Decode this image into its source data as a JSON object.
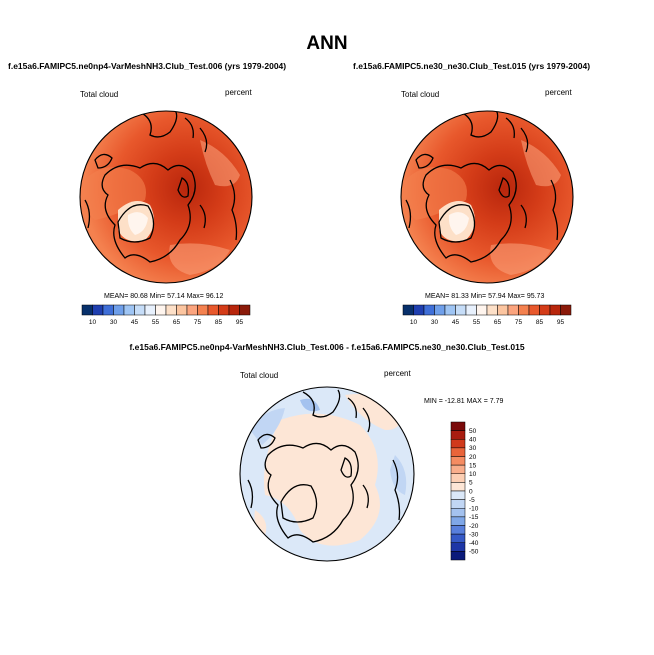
{
  "page": {
    "title": "ANN"
  },
  "chart_data": [
    {
      "type": "heatmap",
      "projection": "north-polar-stereographic",
      "title": "f.e15a6.FAMIPC5.ne0np4-VarMeshNH3.Club_Test.006 (yrs 1979-2004)",
      "variable": "Total cloud",
      "units": "percent",
      "stats": {
        "mean_label": "MEAN=",
        "mean": "80.68",
        "min_label": "Min=",
        "min": "57.14",
        "max_label": "Max=",
        "max": "96.12"
      },
      "colorbar_levels": [
        "10",
        "30",
        "45",
        "55",
        "65",
        "75",
        "85",
        "95"
      ],
      "colorbar_colors": [
        "#08306b",
        "#1f3fb0",
        "#3f6fd8",
        "#6f9fea",
        "#9fc5f4",
        "#c6ddf8",
        "#e8f1fd",
        "#fff5ee",
        "#fde0c8",
        "#fcc5a0",
        "#fba47e",
        "#f4814f",
        "#e8582c",
        "#d43c18",
        "#b8260c",
        "#8b1a0a"
      ],
      "colorbar_orientation": "horizontal"
    },
    {
      "type": "heatmap",
      "projection": "north-polar-stereographic",
      "title": "f.e15a6.FAMIPC5.ne30_ne30.Club_Test.015 (yrs 1979-2004)",
      "variable": "Total cloud",
      "units": "percent",
      "stats": {
        "mean_label": "MEAN=",
        "mean": "81.33",
        "min_label": "Min=",
        "min": "57.94",
        "max_label": "Max=",
        "max": "95.73"
      },
      "colorbar_levels": [
        "10",
        "30",
        "45",
        "55",
        "65",
        "75",
        "85",
        "95"
      ],
      "colorbar_colors": [
        "#08306b",
        "#1f3fb0",
        "#3f6fd8",
        "#6f9fea",
        "#9fc5f4",
        "#c6ddf8",
        "#e8f1fd",
        "#fff5ee",
        "#fde0c8",
        "#fcc5a0",
        "#fba47e",
        "#f4814f",
        "#e8582c",
        "#d43c18",
        "#b8260c",
        "#8b1a0a"
      ],
      "colorbar_orientation": "horizontal"
    },
    {
      "type": "heatmap",
      "projection": "north-polar-stereographic",
      "title": "f.e15a6.FAMIPC5.ne0np4-VarMeshNH3.Club_Test.006 - f.e15a6.FAMIPC5.ne30_ne30.Club_Test.015",
      "variable": "Total cloud",
      "units": "percent",
      "stats_text": "MIN = -12.81  MAX =  7.79",
      "colorbar_levels": [
        "50",
        "40",
        "30",
        "20",
        "15",
        "10",
        "5",
        "0",
        "-5",
        "-10",
        "-15",
        "-20",
        "-30",
        "-40",
        "-50"
      ],
      "colorbar_colors": [
        "#7a0a0a",
        "#a81c10",
        "#d03a1c",
        "#e9643a",
        "#f58c62",
        "#f9ae8c",
        "#fccfb4",
        "#fde6d6",
        "#dbe8f8",
        "#c1d6f4",
        "#a4c2ef",
        "#7fa7e8",
        "#587fdc",
        "#3559c6",
        "#1d36a6",
        "#0a1a7a"
      ],
      "colorbar_orientation": "vertical"
    }
  ]
}
